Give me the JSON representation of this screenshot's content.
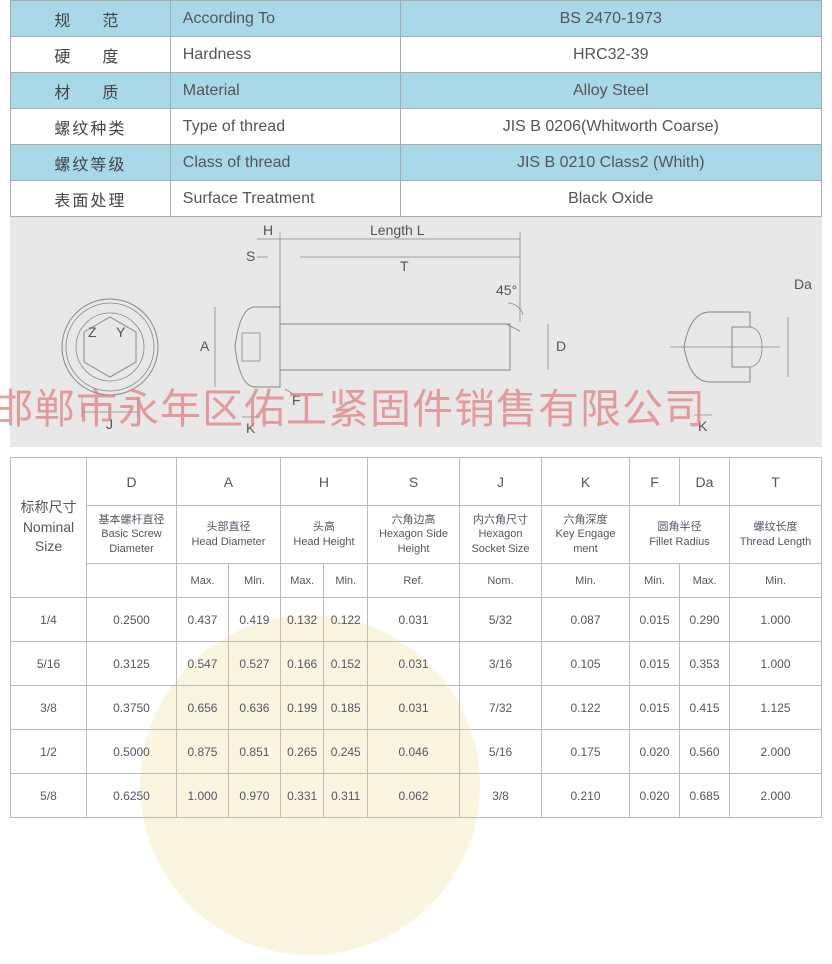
{
  "spec_rows": [
    {
      "cn": "规　范",
      "en": "According To",
      "val": "BS 2470-1973",
      "blue": true,
      "tight": false
    },
    {
      "cn": "硬　度",
      "en": "Hardness",
      "val": "HRC32-39",
      "blue": false,
      "tight": false
    },
    {
      "cn": "材　质",
      "en": "Material",
      "val": "Alloy Steel",
      "blue": true,
      "tight": false
    },
    {
      "cn": "螺纹种类",
      "en": "Type of thread",
      "val": "JIS B 0206(Whitworth Coarse)",
      "blue": false,
      "tight": true
    },
    {
      "cn": "螺纹等级",
      "en": "Class of thread",
      "val": "JIS B 0210 Class2 (Whith)",
      "blue": true,
      "tight": true
    },
    {
      "cn": "表面处理",
      "en": "Surface Treatment",
      "val": "Black Oxide",
      "blue": false,
      "tight": true
    }
  ],
  "diagram": {
    "labels": {
      "H": "H",
      "S": "S",
      "LengthL": "Length L",
      "T": "T",
      "angle": "45°",
      "A": "A",
      "F": "F",
      "D": "D",
      "Da": "Da",
      "K": "K",
      "J": "J",
      "Z": "Z",
      "Y": "Y"
    }
  },
  "watermark_text": "邯郸市永年区佑工紧固件销售有限公司",
  "headers": {
    "nominal_cn": "标称尺寸",
    "nominal_en": "Nominal Size",
    "symbols": [
      "D",
      "A",
      "H",
      "S",
      "J",
      "K",
      "F",
      "Da",
      "T"
    ],
    "desc": [
      {
        "cn": "基本螺杆直径",
        "en": "Basic Screw Diameter"
      },
      {
        "cn": "头部直径",
        "en": "Head Diameter"
      },
      {
        "cn": "头高",
        "en": "Head Height"
      },
      {
        "cn": "六角边高",
        "en": "Hexagon Side Height"
      },
      {
        "cn": "内六角尺寸",
        "en": "Hexagon Socket Size"
      },
      {
        "cn": "六角深度",
        "en": "Key Engage ment"
      },
      {
        "cn": "圆角半径",
        "en": "Fillet Radius"
      },
      {
        "cn": "螺纹长度",
        "en": "Thread Length"
      }
    ],
    "sub": [
      "",
      "Max.",
      "Min.",
      "Max.",
      "Min.",
      "Ref.",
      "Nom.",
      "Min.",
      "Min.",
      "Max.",
      "Min."
    ]
  },
  "rows": [
    {
      "nom": "1/4",
      "d": "0.2500",
      "amax": "0.437",
      "amin": "0.419",
      "hmax": "0.132",
      "hmin": "0.122",
      "s": "0.031",
      "j": "5/32",
      "k": "0.087",
      "fmin": "0.015",
      "damax": "0.290",
      "t": "1.000"
    },
    {
      "nom": "5/16",
      "d": "0.3125",
      "amax": "0.547",
      "amin": "0.527",
      "hmax": "0.166",
      "hmin": "0.152",
      "s": "0.031",
      "j": "3/16",
      "k": "0.105",
      "fmin": "0.015",
      "damax": "0.353",
      "t": "1.000"
    },
    {
      "nom": "3/8",
      "d": "0.3750",
      "amax": "0.656",
      "amin": "0.636",
      "hmax": "0.199",
      "hmin": "0.185",
      "s": "0.031",
      "j": "7/32",
      "k": "0.122",
      "fmin": "0.015",
      "damax": "0.415",
      "t": "1.125"
    },
    {
      "nom": "1/2",
      "d": "0.5000",
      "amax": "0.875",
      "amin": "0.851",
      "hmax": "0.265",
      "hmin": "0.245",
      "s": "0.046",
      "j": "5/16",
      "k": "0.175",
      "fmin": "0.020",
      "damax": "0.560",
      "t": "2.000"
    },
    {
      "nom": "5/8",
      "d": "0.6250",
      "amax": "1.000",
      "amin": "0.970",
      "hmax": "0.331",
      "hmin": "0.311",
      "s": "0.062",
      "j": "3/8",
      "k": "0.210",
      "fmin": "0.020",
      "damax": "0.685",
      "t": "2.000"
    }
  ],
  "colors": {
    "blue": "#a9d9e8",
    "diagram_bg": "#e8e8e8",
    "watermark": "#e08080",
    "circle": "#f5e9b8",
    "border": "#aaa",
    "text": "#555"
  }
}
